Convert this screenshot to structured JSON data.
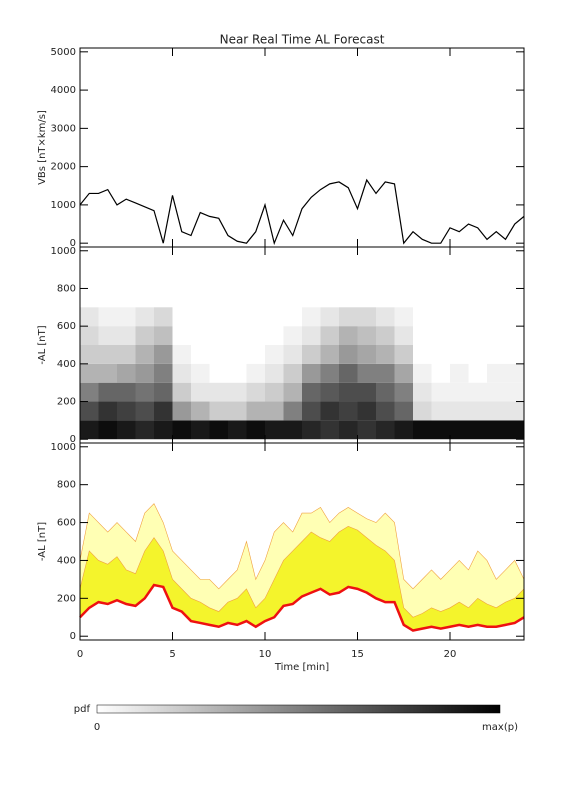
{
  "chart_data": [
    {
      "type": "line",
      "title": "Near Real Time AL Forecast",
      "ylabel": "VBs [nT×km/s]",
      "xlim": [
        0,
        24
      ],
      "xticks": [
        0,
        5,
        10,
        15,
        20
      ],
      "ylim": [
        -100,
        5100
      ],
      "yticks": [
        0,
        1000,
        2000,
        3000,
        4000,
        5000
      ],
      "x": [
        0,
        0.5,
        1,
        1.5,
        2,
        2.5,
        3,
        3.5,
        4,
        4.5,
        5,
        5.5,
        6,
        6.5,
        7,
        7.5,
        8,
        8.5,
        9,
        9.5,
        10,
        10.5,
        11,
        11.5,
        12,
        12.5,
        13,
        13.5,
        14,
        14.5,
        15,
        15.5,
        16,
        16.5,
        17,
        17.5,
        18,
        18.5,
        19,
        19.5,
        20,
        20.5,
        21,
        21.5,
        22,
        22.5,
        23,
        23.5,
        24
      ],
      "series": [
        {
          "color": "#000000",
          "values": [
            1000,
            1300,
            1300,
            1400,
            1000,
            1150,
            1050,
            950,
            850,
            0,
            1250,
            300,
            200,
            800,
            700,
            650,
            200,
            50,
            0,
            300,
            1000,
            0,
            600,
            200,
            900,
            1200,
            1400,
            1550,
            1600,
            1450,
            900,
            1650,
            1300,
            1600,
            1550,
            0,
            300,
            100,
            0,
            0,
            400,
            300,
            500,
            400,
            100,
            300,
            100,
            500,
            700
          ]
        }
      ]
    },
    {
      "type": "heatmap",
      "ylabel": "-AL [nT]",
      "xlim": [
        0,
        24
      ],
      "xticks": [
        0,
        5,
        10,
        15,
        20
      ],
      "ylim": [
        -20,
        1020
      ],
      "yticks": [
        0,
        200,
        400,
        600,
        800,
        1000
      ],
      "xbins": [
        0,
        1,
        2,
        3,
        4,
        5,
        6,
        7,
        8,
        9,
        10,
        11,
        12,
        13,
        14,
        15,
        16,
        17,
        18,
        19,
        20,
        21,
        22,
        23,
        24
      ],
      "ybins": [
        0,
        100,
        200,
        300,
        400,
        500,
        600,
        700
      ],
      "z": [
        [
          0.9,
          0.95,
          0.9,
          0.85,
          0.9,
          0.95,
          0.9,
          0.95,
          0.9,
          0.95,
          0.9,
          0.9,
          0.85,
          0.8,
          0.85,
          0.8,
          0.85,
          0.9,
          0.95,
          0.95,
          0.95,
          0.95,
          0.95,
          0.95
        ],
        [
          0.7,
          0.8,
          0.75,
          0.7,
          0.8,
          0.4,
          0.3,
          0.2,
          0.2,
          0.3,
          0.3,
          0.5,
          0.7,
          0.8,
          0.75,
          0.8,
          0.7,
          0.6,
          0.15,
          0.1,
          0.1,
          0.1,
          0.1,
          0.1
        ],
        [
          0.5,
          0.6,
          0.6,
          0.55,
          0.6,
          0.2,
          0.1,
          0.1,
          0.1,
          0.15,
          0.2,
          0.3,
          0.6,
          0.65,
          0.7,
          0.7,
          0.6,
          0.5,
          0.1,
          0.05,
          0.05,
          0.05,
          0.05,
          0.05
        ],
        [
          0.3,
          0.3,
          0.35,
          0.4,
          0.5,
          0.1,
          0.05,
          0,
          0,
          0.05,
          0.1,
          0.2,
          0.4,
          0.5,
          0.6,
          0.5,
          0.5,
          0.35,
          0.05,
          0,
          0.05,
          0,
          0.05,
          0.05
        ],
        [
          0.2,
          0.2,
          0.2,
          0.3,
          0.4,
          0.05,
          0,
          0,
          0,
          0,
          0.05,
          0.1,
          0.2,
          0.3,
          0.4,
          0.35,
          0.3,
          0.2,
          0,
          0,
          0,
          0,
          0,
          0
        ],
        [
          0.15,
          0.1,
          0.1,
          0.2,
          0.25,
          0,
          0,
          0,
          0,
          0,
          0,
          0.05,
          0.1,
          0.2,
          0.3,
          0.25,
          0.2,
          0.1,
          0,
          0,
          0,
          0,
          0,
          0
        ],
        [
          0.1,
          0.05,
          0.05,
          0.1,
          0.15,
          0,
          0,
          0,
          0,
          0,
          0,
          0,
          0.05,
          0.1,
          0.15,
          0.15,
          0.1,
          0.05,
          0,
          0,
          0,
          0,
          0,
          0
        ]
      ],
      "colorbar": {
        "label": "pdf",
        "min_label": "0",
        "max_label": "max(p)"
      }
    },
    {
      "type": "area",
      "ylabel": "-AL [nT]",
      "xlabel": "Time [min]",
      "xlim": [
        0,
        24
      ],
      "xticks": [
        0,
        5,
        10,
        15,
        20
      ],
      "ylim": [
        -20,
        1020
      ],
      "yticks": [
        0,
        200,
        400,
        600,
        800,
        1000
      ],
      "x": [
        0,
        0.5,
        1,
        1.5,
        2,
        2.5,
        3,
        3.5,
        4,
        4.5,
        5,
        5.5,
        6,
        6.5,
        7,
        7.5,
        8,
        8.5,
        9,
        9.5,
        10,
        10.5,
        11,
        11.5,
        12,
        12.5,
        13,
        13.5,
        14,
        14.5,
        15,
        15.5,
        16,
        16.5,
        17,
        17.5,
        18,
        18.5,
        19,
        19.5,
        20,
        20.5,
        21,
        21.5,
        22,
        22.5,
        23,
        23.5,
        24
      ],
      "series": [
        {
          "color": "#ffffb4",
          "values": [
            400,
            650,
            600,
            550,
            600,
            550,
            500,
            650,
            700,
            600,
            450,
            400,
            350,
            300,
            300,
            250,
            300,
            350,
            500,
            300,
            400,
            550,
            600,
            550,
            650,
            650,
            680,
            600,
            650,
            680,
            650,
            620,
            600,
            650,
            600,
            300,
            250,
            300,
            350,
            300,
            350,
            400,
            350,
            450,
            400,
            300,
            350,
            400,
            300
          ]
        },
        {
          "color": "#f4f42c",
          "values": [
            250,
            450,
            400,
            380,
            420,
            350,
            330,
            450,
            520,
            450,
            300,
            250,
            200,
            180,
            150,
            130,
            180,
            200,
            250,
            150,
            200,
            300,
            400,
            450,
            500,
            550,
            520,
            500,
            550,
            580,
            560,
            520,
            480,
            450,
            400,
            150,
            100,
            120,
            150,
            130,
            150,
            180,
            150,
            200,
            170,
            150,
            180,
            200,
            250
          ]
        },
        {
          "color": "#ee1111",
          "values": [
            100,
            150,
            180,
            170,
            190,
            170,
            160,
            200,
            270,
            260,
            150,
            130,
            80,
            70,
            60,
            50,
            70,
            60,
            80,
            50,
            80,
            100,
            160,
            170,
            210,
            230,
            250,
            220,
            230,
            260,
            250,
            230,
            200,
            180,
            180,
            60,
            30,
            40,
            50,
            40,
            50,
            60,
            50,
            60,
            50,
            50,
            60,
            70,
            100
          ]
        }
      ]
    }
  ]
}
